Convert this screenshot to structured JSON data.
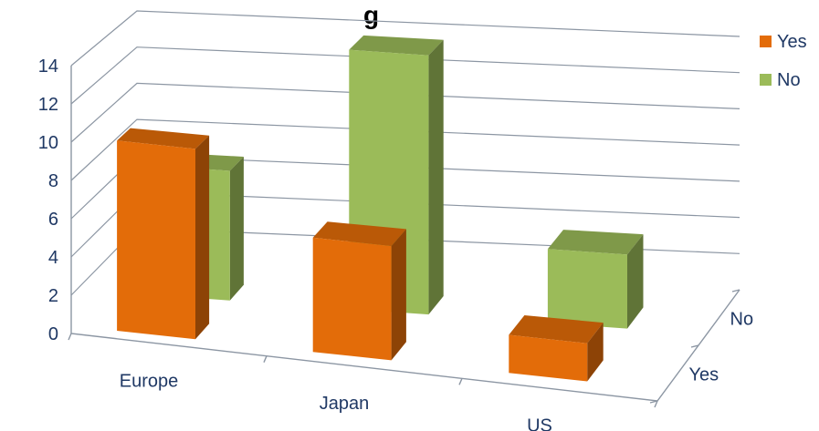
{
  "chart_data": {
    "type": "bar",
    "variant": "3d-clustered-depth",
    "title": "g",
    "categories": [
      "Europe",
      "Japan",
      "US"
    ],
    "depth_labels": [
      "Yes",
      "No"
    ],
    "series": [
      {
        "name": "Yes",
        "values": [
          10,
          6,
          2
        ],
        "color": "#e36c09"
      },
      {
        "name": "No",
        "values": [
          7,
          14,
          4
        ],
        "color": "#9bbb59"
      }
    ],
    "ylim": [
      0,
      14
    ],
    "yticks": [
      0,
      2,
      4,
      6,
      8,
      10,
      12,
      14
    ],
    "grid": true,
    "legend": {
      "position": "top-right",
      "entries": [
        "Yes",
        "No"
      ]
    }
  }
}
